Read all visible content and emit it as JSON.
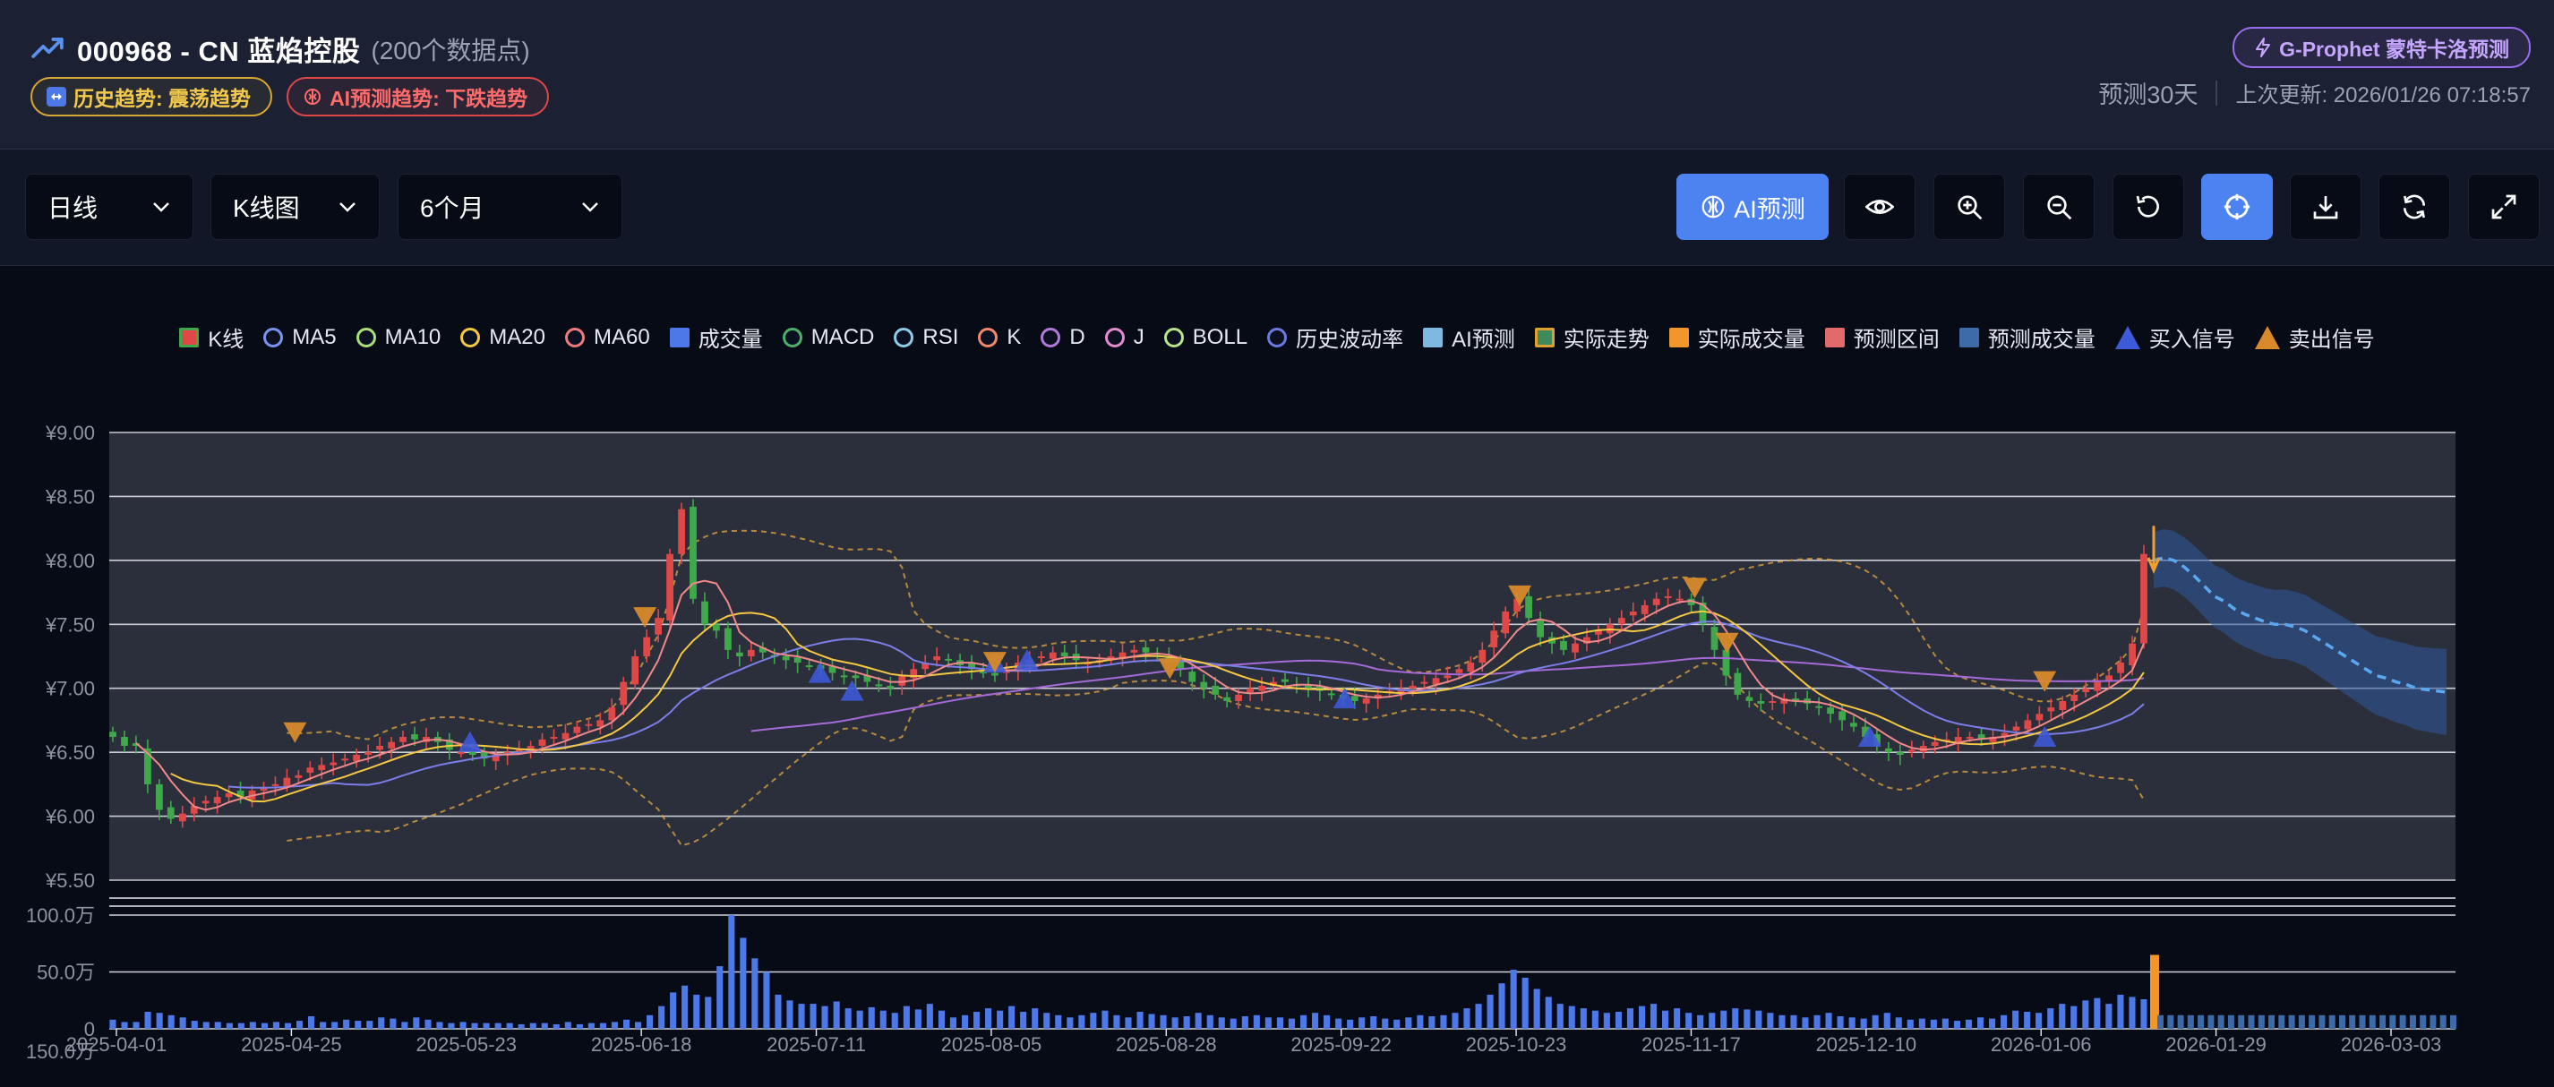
{
  "header": {
    "title": "000968 - CN 蓝焰控股",
    "subtitle": "(200个数据点)",
    "trend_badge": "历史趋势: 震荡趋势",
    "ai_badge": "AI预测趋势: 下跌趋势",
    "gprophet_label": "G-Prophet 蒙特卡洛预测",
    "forecast_days": "预测30天",
    "last_update": "上次更新: 2026/01/26 07:18:57"
  },
  "toolbar": {
    "period": "日线",
    "chart_type": "K线图",
    "range": "6个月",
    "ai_button": "AI预测",
    "icons": [
      "eye-icon",
      "zoom-in-icon",
      "zoom-out-icon",
      "reset-icon",
      "crosshair-icon",
      "download-icon",
      "refresh-icon",
      "fullscreen-icon"
    ],
    "active_icon": "crosshair-icon"
  },
  "legend": [
    {
      "label": "K线",
      "kind": "rect",
      "color": "#e04848",
      "border": "#3ea84a"
    },
    {
      "label": "MA5",
      "kind": "circle",
      "color": "#7b93f0"
    },
    {
      "label": "MA10",
      "kind": "circle",
      "color": "#a7e07a"
    },
    {
      "label": "MA20",
      "kind": "circle",
      "color": "#f5c842"
    },
    {
      "label": "MA60",
      "kind": "circle",
      "color": "#f07a7a"
    },
    {
      "label": "成交量",
      "kind": "rect",
      "color": "#4c78e8"
    },
    {
      "label": "MACD",
      "kind": "circle",
      "color": "#4caf6a"
    },
    {
      "label": "RSI",
      "kind": "circle",
      "color": "#8ecbe8"
    },
    {
      "label": "K",
      "kind": "circle",
      "color": "#f0886a"
    },
    {
      "label": "D",
      "kind": "circle",
      "color": "#b07ad8"
    },
    {
      "label": "J",
      "kind": "circle",
      "color": "#e48ad0"
    },
    {
      "label": "BOLL",
      "kind": "circle",
      "color": "#b5e48a"
    },
    {
      "label": "历史波动率",
      "kind": "circle",
      "color": "#6a7ae0"
    },
    {
      "label": "AI预测",
      "kind": "rect",
      "color": "#7fb8e0"
    },
    {
      "label": "实际走势",
      "kind": "rect",
      "color": "#3e8a5a",
      "border": "#e0a030"
    },
    {
      "label": "实际成交量",
      "kind": "rect",
      "color": "#f0962a"
    },
    {
      "label": "预测区间",
      "kind": "rect",
      "color": "#e06a6a"
    },
    {
      "label": "预测成交量",
      "kind": "rect",
      "color": "#3d6aa8"
    },
    {
      "label": "买入信号",
      "kind": "tri",
      "color": "#3d5ad8"
    },
    {
      "label": "卖出信号",
      "kind": "tri",
      "color": "#d88a2a"
    }
  ],
  "chart_data": {
    "type": "candlestick",
    "price_axis": {
      "ticks": [
        "¥9.00",
        "¥8.50",
        "¥8.00",
        "¥7.50",
        "¥7.00",
        "¥6.50",
        "¥6.00",
        "¥5.50"
      ],
      "ylim": [
        5.5,
        9.0
      ]
    },
    "volume_axis": {
      "ticks": [
        "100.0万",
        "50.0万",
        "0"
      ],
      "ylim": [
        0,
        100
      ]
    },
    "volume_axis_label": "150.0万",
    "x_ticks": [
      "2025-04-01",
      "2025-04-25",
      "2025-05-23",
      "2025-06-18",
      "2025-07-11",
      "2025-08-05",
      "2025-08-28",
      "2025-09-22",
      "2025-10-23",
      "2025-11-17",
      "2025-12-10",
      "2026-01-06",
      "2026-01-29",
      "2026-03-03"
    ],
    "history_close": [
      6.62,
      6.55,
      6.55,
      6.25,
      6.05,
      5.98,
      6.02,
      6.08,
      6.12,
      6.15,
      6.18,
      6.15,
      6.2,
      6.22,
      6.25,
      6.3,
      6.32,
      6.38,
      6.4,
      6.42,
      6.45,
      6.48,
      6.5,
      6.55,
      6.58,
      6.62,
      6.6,
      6.62,
      6.58,
      6.52,
      6.5,
      6.48,
      6.45,
      6.48,
      6.5,
      6.52,
      6.55,
      6.6,
      6.62,
      6.65,
      6.7,
      6.72,
      6.75,
      6.85,
      7.05,
      7.25,
      7.4,
      7.55,
      8.05,
      8.4,
      7.7,
      7.5,
      7.45,
      7.3,
      7.25,
      7.3,
      7.28,
      7.25,
      7.22,
      7.2,
      7.18,
      7.15,
      7.12,
      7.1,
      7.08,
      7.05,
      7.02,
      7.0,
      7.1,
      7.15,
      7.2,
      7.25,
      7.22,
      7.18,
      7.15,
      7.12,
      7.1,
      7.15,
      7.2,
      7.22,
      7.25,
      7.28,
      7.25,
      7.22,
      7.2,
      7.22,
      7.25,
      7.28,
      7.3,
      7.28,
      7.25,
      7.2,
      7.15,
      7.05,
      7.0,
      6.95,
      6.9,
      6.95,
      7.0,
      7.02,
      7.05,
      7.05,
      7.02,
      7.0,
      6.98,
      6.95,
      6.92,
      6.9,
      6.92,
      6.95,
      6.98,
      7.0,
      7.02,
      7.05,
      7.08,
      7.1,
      7.15,
      7.2,
      7.3,
      7.45,
      7.6,
      7.7,
      7.55,
      7.4,
      7.35,
      7.3,
      7.35,
      7.4,
      7.45,
      7.5,
      7.55,
      7.6,
      7.65,
      7.7,
      7.72,
      7.7,
      7.65,
      7.5,
      7.3,
      7.1,
      6.95,
      6.9,
      6.88,
      6.9,
      6.92,
      6.9,
      6.88,
      6.85,
      6.8,
      6.75,
      6.7,
      6.62,
      6.55,
      6.5,
      6.48,
      6.52,
      6.55,
      6.58,
      6.6,
      6.62,
      6.62,
      6.6,
      6.62,
      6.65,
      6.7,
      6.75,
      6.8,
      6.85,
      6.9,
      6.95,
      7.0,
      7.05,
      7.1,
      7.2,
      7.35,
      8.05
    ],
    "forecast_mean": [
      8.0,
      8.02,
      8.0,
      7.95,
      7.88,
      7.8,
      7.72,
      7.68,
      7.62,
      7.58,
      7.55,
      7.52,
      7.5,
      7.5,
      7.48,
      7.45,
      7.4,
      7.35,
      7.3,
      7.25,
      7.2,
      7.15,
      7.1,
      7.08,
      7.05,
      7.03,
      7.0,
      6.99,
      6.98,
      6.97
    ],
    "forecast_band_half_width": 0.22,
    "buy_signals": [
      {
        "x": "2025-05-23",
        "y": 6.58
      },
      {
        "x": "2025-07-11",
        "y": 7.12
      },
      {
        "x": "2025-07-11",
        "y": 6.98
      },
      {
        "x": "2025-08-05",
        "y": 7.2
      },
      {
        "x": "2025-08-05",
        "y": 7.22
      },
      {
        "x": "2025-09-22",
        "y": 6.92
      },
      {
        "x": "2025-12-10",
        "y": 6.62
      },
      {
        "x": "2026-01-06",
        "y": 6.62
      }
    ],
    "sell_signals": [
      {
        "x": "2025-04-25",
        "y": 6.65
      },
      {
        "x": "2025-06-18",
        "y": 7.55
      },
      {
        "x": "2025-08-05",
        "y": 7.2
      },
      {
        "x": "2025-08-28",
        "y": 7.15
      },
      {
        "x": "2025-10-23",
        "y": 7.72
      },
      {
        "x": "2025-11-17",
        "y": 7.78
      },
      {
        "x": "2025-11-17",
        "y": 7.35
      },
      {
        "x": "2026-01-06",
        "y": 7.05
      }
    ],
    "volume": [
      8,
      6,
      6,
      15,
      14,
      12,
      10,
      7,
      6,
      6,
      5,
      5,
      6,
      5,
      6,
      5,
      7,
      11,
      6,
      6,
      8,
      7,
      7,
      10,
      9,
      6,
      10,
      8,
      6,
      5,
      6,
      5,
      5,
      5,
      5,
      4,
      5,
      5,
      4,
      6,
      4,
      5,
      5,
      6,
      8,
      6,
      12,
      20,
      32,
      38,
      30,
      28,
      55,
      100,
      80,
      62,
      50,
      30,
      25,
      22,
      22,
      20,
      24,
      18,
      16,
      19,
      16,
      14,
      20,
      17,
      22,
      16,
      10,
      12,
      15,
      18,
      16,
      20,
      15,
      18,
      14,
      12,
      10,
      12,
      14,
      16,
      12,
      10,
      15,
      13,
      12,
      10,
      11,
      14,
      12,
      10,
      9,
      11,
      12,
      10,
      10,
      9,
      12,
      14,
      12,
      9,
      8,
      10,
      11,
      9,
      8,
      10,
      12,
      11,
      12,
      14,
      18,
      22,
      30,
      40,
      52,
      45,
      35,
      28,
      22,
      20,
      18,
      16,
      14,
      15,
      18,
      20,
      22,
      16,
      18,
      14,
      12,
      14,
      16,
      18,
      17,
      16,
      14,
      12,
      12,
      10,
      12,
      14,
      11,
      10,
      9,
      12,
      14,
      10,
      8,
      9,
      8,
      9,
      7,
      8,
      10,
      9,
      12,
      16,
      15,
      14,
      18,
      22,
      20,
      25,
      27,
      22,
      30,
      28,
      26
    ],
    "actual_volume": 65,
    "forecast_volume": 12
  }
}
